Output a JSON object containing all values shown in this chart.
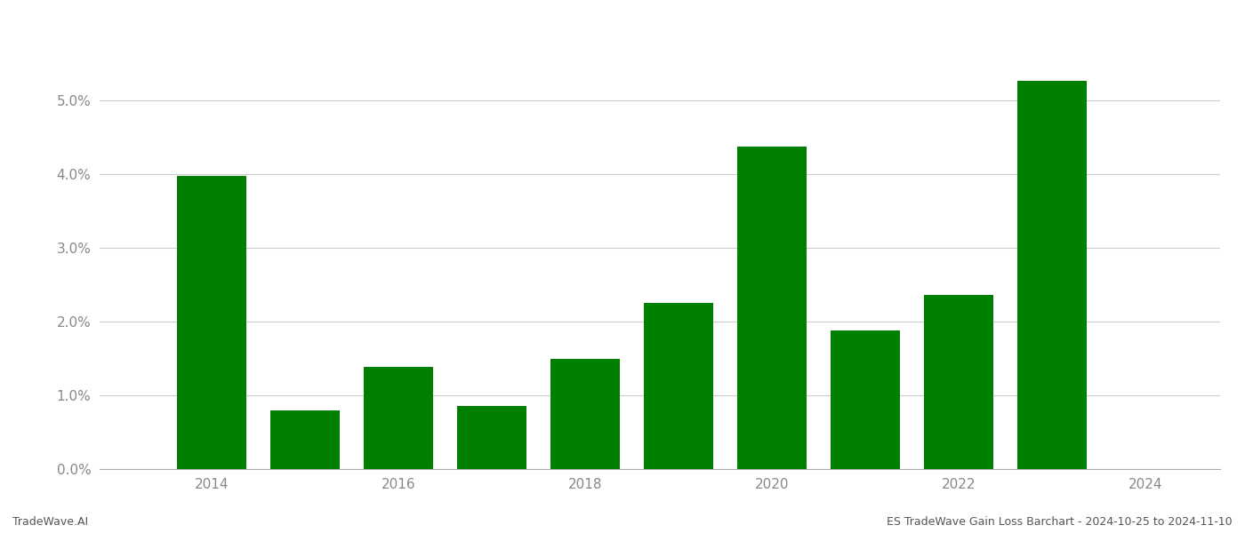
{
  "years": [
    2014,
    2015,
    2016,
    2017,
    2018,
    2019,
    2020,
    2021,
    2022,
    2023
  ],
  "values": [
    0.0397,
    0.0079,
    0.0139,
    0.0086,
    0.0149,
    0.0225,
    0.0437,
    0.0188,
    0.0236,
    0.0527
  ],
  "bar_color": "#008000",
  "background_color": "#ffffff",
  "grid_color": "#cccccc",
  "footer_left": "TradeWave.AI",
  "footer_right": "ES TradeWave Gain Loss Barchart - 2024-10-25 to 2024-11-10",
  "ylim": [
    0,
    0.06
  ],
  "yticks": [
    0.0,
    0.01,
    0.02,
    0.03,
    0.04,
    0.05
  ],
  "xticks": [
    2014,
    2016,
    2018,
    2020,
    2022,
    2024
  ],
  "xlim": [
    2012.8,
    2024.8
  ],
  "bar_width": 0.75
}
